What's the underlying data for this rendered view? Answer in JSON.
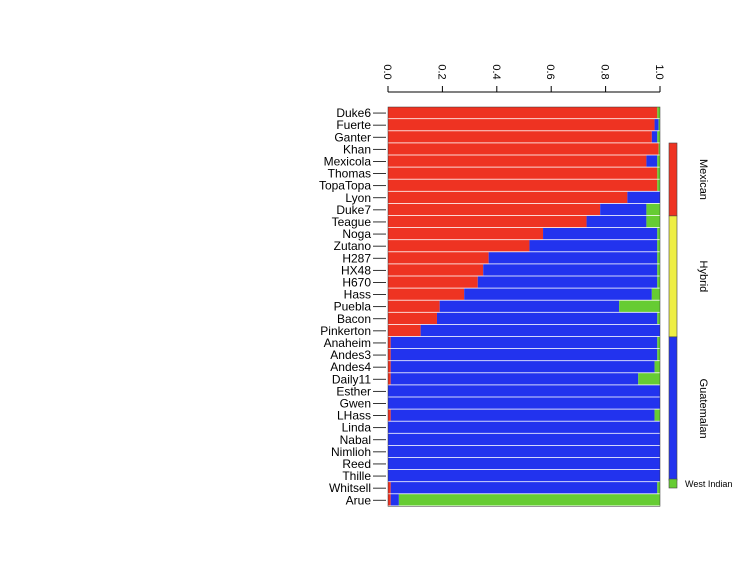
{
  "chart_data": {
    "type": "bar",
    "stacked": true,
    "orientation": "horizontal",
    "title": "",
    "xlabel": "",
    "ylabel": "",
    "xlim": [
      0,
      1
    ],
    "x_ticks": [
      "0.0",
      "0.2",
      "0.4",
      "0.6",
      "0.8",
      "1.0"
    ],
    "categories": [
      "Duke6",
      "Fuerte",
      "Ganter",
      "Khan",
      "Mexicola",
      "Thomas",
      "TopaTopa",
      "Lyon",
      "Duke7",
      "Teague",
      "Noga",
      "Zutano",
      "H287",
      "HX48",
      "H670",
      "Hass",
      "Puebla",
      "Bacon",
      "Pinkerton",
      "Anaheim",
      "Andes3",
      "Andes4",
      "Daily11",
      "Esther",
      "Gwen",
      "LHass",
      "Linda",
      "Nabal",
      "Nimlioh",
      "Reed",
      "Thille",
      "Whitsell",
      "Arue"
    ],
    "series": [
      {
        "name": "Mexican",
        "color": "#ee3322",
        "values": [
          0.99,
          0.98,
          0.97,
          0.995,
          0.95,
          0.99,
          0.99,
          0.88,
          0.78,
          0.73,
          0.57,
          0.52,
          0.37,
          0.35,
          0.33,
          0.28,
          0.19,
          0.18,
          0.12,
          0.01,
          0.01,
          0.01,
          0.01,
          0.0,
          0.0,
          0.01,
          0.0,
          0.0,
          0.0,
          0.0,
          0.0,
          0.01,
          0.01
        ]
      },
      {
        "name": "Guatemalan",
        "color": "#2233ee",
        "values": [
          0.0,
          0.015,
          0.02,
          0.0,
          0.04,
          0.0,
          0.0,
          0.12,
          0.17,
          0.22,
          0.42,
          0.47,
          0.62,
          0.64,
          0.66,
          0.69,
          0.66,
          0.81,
          0.88,
          0.98,
          0.98,
          0.97,
          0.91,
          1.0,
          1.0,
          0.97,
          1.0,
          1.0,
          1.0,
          1.0,
          1.0,
          0.98,
          0.03
        ]
      },
      {
        "name": "West Indian",
        "color": "#66cc33",
        "values": [
          0.01,
          0.005,
          0.01,
          0.005,
          0.01,
          0.01,
          0.01,
          0.0,
          0.05,
          0.05,
          0.01,
          0.01,
          0.01,
          0.01,
          0.01,
          0.03,
          0.15,
          0.01,
          0.0,
          0.01,
          0.01,
          0.02,
          0.08,
          0.0,
          0.0,
          0.02,
          0.0,
          0.0,
          0.0,
          0.0,
          0.0,
          0.01,
          0.96
        ]
      }
    ],
    "groups": [
      {
        "label": "Mexican",
        "color": "#ee3322",
        "from": "Duke6",
        "to": "Duke7"
      },
      {
        "label": "Hybrid",
        "color": "#eeee44",
        "from": "Teague",
        "to": "Pinkerton"
      },
      {
        "label": "Guatemalan",
        "color": "#2233ee",
        "from": "Anaheim",
        "to": "Arue"
      }
    ],
    "legend": {
      "label": "West Indian",
      "color": "#66cc33",
      "placement": "bottom-right"
    },
    "grid": false
  }
}
